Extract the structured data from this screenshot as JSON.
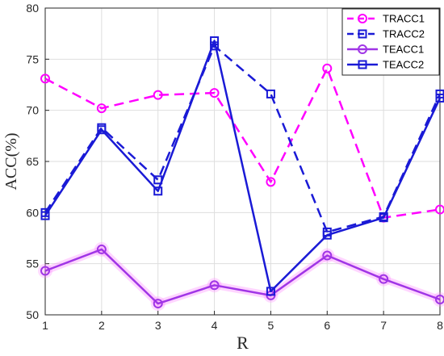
{
  "chart_data": {
    "type": "line",
    "xlabel": "R",
    "ylabel": "ACC(%)",
    "x": [
      1,
      2,
      3,
      4,
      5,
      6,
      7,
      8
    ],
    "xlim": [
      1,
      8
    ],
    "ylim": [
      50,
      80
    ],
    "xticks": [
      "1",
      "2",
      "3",
      "4",
      "5",
      "6",
      "7",
      "8"
    ],
    "yticks": [
      "50",
      "55",
      "60",
      "65",
      "70",
      "75",
      "80"
    ],
    "grid": true,
    "legend_position": "top-right",
    "series": [
      {
        "name": "TRACC1",
        "values": [
          73.1,
          70.2,
          71.5,
          71.7,
          63.0,
          74.1,
          59.5,
          60.3
        ],
        "color": "#ff00ff",
        "dash": "dashed",
        "marker": "circle"
      },
      {
        "name": "TRACC2",
        "values": [
          60.0,
          68.3,
          63.2,
          76.3,
          71.6,
          58.1,
          59.6,
          71.6
        ],
        "color": "#1a1ad6",
        "dash": "dashed",
        "marker": "square"
      },
      {
        "name": "TEACC1",
        "values": [
          54.3,
          56.4,
          51.1,
          52.9,
          51.9,
          55.8,
          53.5,
          51.5
        ],
        "color": "#a035e6",
        "dash": "solid",
        "marker": "circle",
        "glow": "#ff88ff"
      },
      {
        "name": "TEACC2",
        "values": [
          59.7,
          68.1,
          62.1,
          76.8,
          52.3,
          57.8,
          59.5,
          71.2
        ],
        "color": "#1a1ad6",
        "dash": "solid",
        "marker": "square"
      }
    ]
  }
}
